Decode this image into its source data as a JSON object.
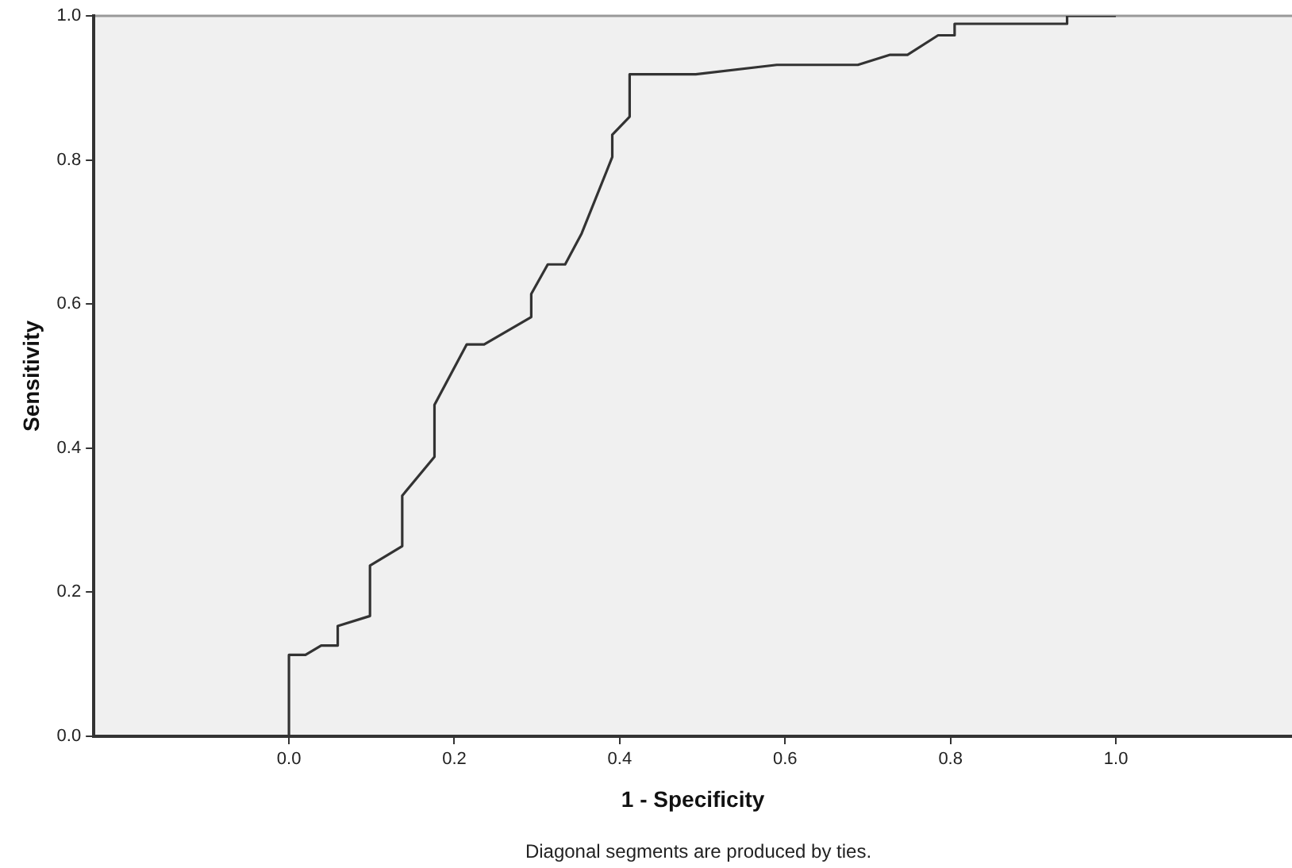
{
  "chart_data": {
    "type": "line",
    "xlabel": "1 - Specificity",
    "ylabel": "Sensitivity",
    "annotations": [
      "Diagonal segments are produced by ties."
    ],
    "x": [
      0,
      0,
      0.02,
      0.039,
      0.059,
      0.059,
      0.098,
      0.098,
      0.137,
      0.137,
      0.176,
      0.176,
      0.215,
      0.236,
      0.293,
      0.293,
      0.313,
      0.334,
      0.354,
      0.391,
      0.391,
      0.412,
      0.412,
      0.492,
      0.59,
      0.688,
      0.727,
      0.748,
      0.785,
      0.805,
      0.805,
      0.941,
      0.941,
      1.0
    ],
    "series": [
      {
        "color": "#333333",
        "values": [
          0,
          0.113,
          0.113,
          0.126,
          0.126,
          0.153,
          0.167,
          0.237,
          0.264,
          0.334,
          0.388,
          0.46,
          0.544,
          0.544,
          0.582,
          0.614,
          0.655,
          0.655,
          0.698,
          0.804,
          0.835,
          0.86,
          0.919,
          0.919,
          0.932,
          0.932,
          0.946,
          0.946,
          0.973,
          0.973,
          0.989,
          0.989,
          1.0,
          1.0
        ]
      }
    ],
    "xlim": [
      -0.236,
      1.213
    ],
    "ylim": [
      0,
      1
    ],
    "xticks": [
      {
        "value": 0,
        "label": "0.0"
      },
      {
        "value": 0.2,
        "label": "0.2"
      },
      {
        "value": 0.4,
        "label": "0.4"
      },
      {
        "value": 0.6,
        "label": "0.6"
      },
      {
        "value": 0.8,
        "label": "0.8"
      },
      {
        "value": 1,
        "label": "1.0"
      }
    ],
    "yticks": [
      {
        "value": 0,
        "label": "0.0"
      },
      {
        "value": 0.2,
        "label": "0.2"
      },
      {
        "value": 0.4,
        "label": "0.4"
      },
      {
        "value": 0.6,
        "label": "0.6"
      },
      {
        "value": 0.8,
        "label": "0.8"
      },
      {
        "value": 1,
        "label": "1.0"
      }
    ],
    "grid": false,
    "legend": false,
    "marker": "none",
    "line_style": "solid"
  }
}
